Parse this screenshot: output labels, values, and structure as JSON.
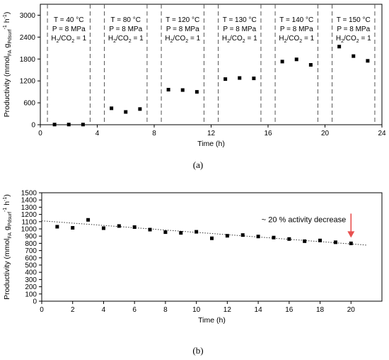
{
  "panels": {
    "a_label": "(a)",
    "b_label": "(b)"
  },
  "chart_data": [
    {
      "type": "scatter",
      "panel": "(a)",
      "xlabel": "Time (h)",
      "ylabel": "Productivity (mmol_FA g_Pdsurf^-1 h^-1)",
      "xlim": [
        0,
        24
      ],
      "ylim": [
        0,
        3300
      ],
      "xticks": [
        0,
        4,
        8,
        12,
        16,
        20,
        24
      ],
      "xticklabels": [
        "0",
        "4",
        "8",
        "12",
        "16",
        "20",
        "24"
      ],
      "yticks": [
        0,
        600,
        1200,
        1800,
        2400,
        3000
      ],
      "yticklabels": [
        "0",
        "600",
        "1200",
        "1800",
        "2400",
        "3000"
      ],
      "grid": false,
      "dividers_x": [
        0.5,
        3.5,
        4.5,
        7.5,
        8.5,
        11.5,
        12.5,
        15.5,
        16.5,
        19.5,
        20.5,
        23.5
      ],
      "segments": [
        {
          "x_mid": 2,
          "temp": "T = 40 °C",
          "pressure": "P = 8 MPa",
          "ratio_sym": "H",
          "ratio_sub": "2",
          "ratio_rest": "/CO",
          "ratio_sub2": "2",
          "ratio_val": " = 1"
        },
        {
          "x_mid": 6,
          "temp": "T = 80 °C",
          "pressure": "P = 8 MPa",
          "ratio_sym": "H",
          "ratio_sub": "2",
          "ratio_rest": "/CO",
          "ratio_sub2": "2",
          "ratio_val": " = 1"
        },
        {
          "x_mid": 10,
          "temp": "T = 120 °C",
          "pressure": "P = 8 MPa",
          "ratio_sym": "H",
          "ratio_sub": "2",
          "ratio_rest": "/CO",
          "ratio_sub2": "2",
          "ratio_val": " = 1"
        },
        {
          "x_mid": 14,
          "temp": "T = 130 °C",
          "pressure": "P = 8 MPa",
          "ratio_sym": "H",
          "ratio_sub": "2",
          "ratio_rest": "/CO",
          "ratio_sub2": "2",
          "ratio_val": " = 1"
        },
        {
          "x_mid": 18,
          "temp": "T = 140 °C",
          "pressure": "P = 8 MPa",
          "ratio_sym": "H",
          "ratio_sub": "2",
          "ratio_rest": "/CO",
          "ratio_sub2": "2",
          "ratio_val": " = 1"
        },
        {
          "x_mid": 22,
          "temp": "T = 150 °C",
          "pressure": "P = 8 MPa",
          "ratio_sym": "H",
          "ratio_sub": "2",
          "ratio_rest": "/CO",
          "ratio_sub2": "2",
          "ratio_val": " = 1"
        }
      ],
      "x": [
        1,
        2,
        3,
        5,
        6,
        7,
        9,
        10,
        11,
        13,
        14,
        15,
        17,
        18,
        19,
        21,
        22,
        23
      ],
      "y": [
        5,
        5,
        5,
        450,
        350,
        430,
        960,
        950,
        900,
        1250,
        1280,
        1270,
        1730,
        1790,
        1640,
        2140,
        1880,
        1750
      ]
    },
    {
      "type": "scatter",
      "panel": "(b)",
      "xlabel": "Time (h)",
      "ylabel": "Productivity (mmol_FA g_Pdsurf^-1 h^-1)",
      "xlim": [
        0,
        22
      ],
      "ylim": [
        0,
        1500
      ],
      "xticks": [
        0,
        2,
        4,
        6,
        8,
        10,
        12,
        14,
        16,
        18,
        20
      ],
      "xticklabels": [
        "0",
        "2",
        "4",
        "6",
        "8",
        "10",
        "12",
        "14",
        "16",
        "18",
        "20"
      ],
      "yticks": [
        0,
        100,
        200,
        300,
        400,
        500,
        600,
        700,
        800,
        900,
        1000,
        1100,
        1200,
        1300,
        1400,
        1500
      ],
      "yticklabels": [
        "0",
        "100",
        "200",
        "300",
        "400",
        "500",
        "600",
        "700",
        "800",
        "900",
        "1000",
        "1100",
        "1200",
        "1300",
        "1400",
        "1500"
      ],
      "grid": false,
      "x": [
        1,
        2,
        3,
        4,
        5,
        6,
        7,
        8,
        9,
        10,
        11,
        12,
        13,
        14,
        15,
        16,
        17,
        18,
        19,
        20
      ],
      "y": [
        1030,
        1015,
        1125,
        1010,
        1040,
        1025,
        990,
        955,
        945,
        960,
        870,
        905,
        915,
        895,
        880,
        860,
        830,
        840,
        815,
        800
      ],
      "trendline": {
        "x": [
          0,
          21
        ],
        "y": [
          1112,
          776
        ]
      },
      "annotation": {
        "text": "~ 20 % activity decrease",
        "x": 20,
        "y": 800
      }
    }
  ]
}
